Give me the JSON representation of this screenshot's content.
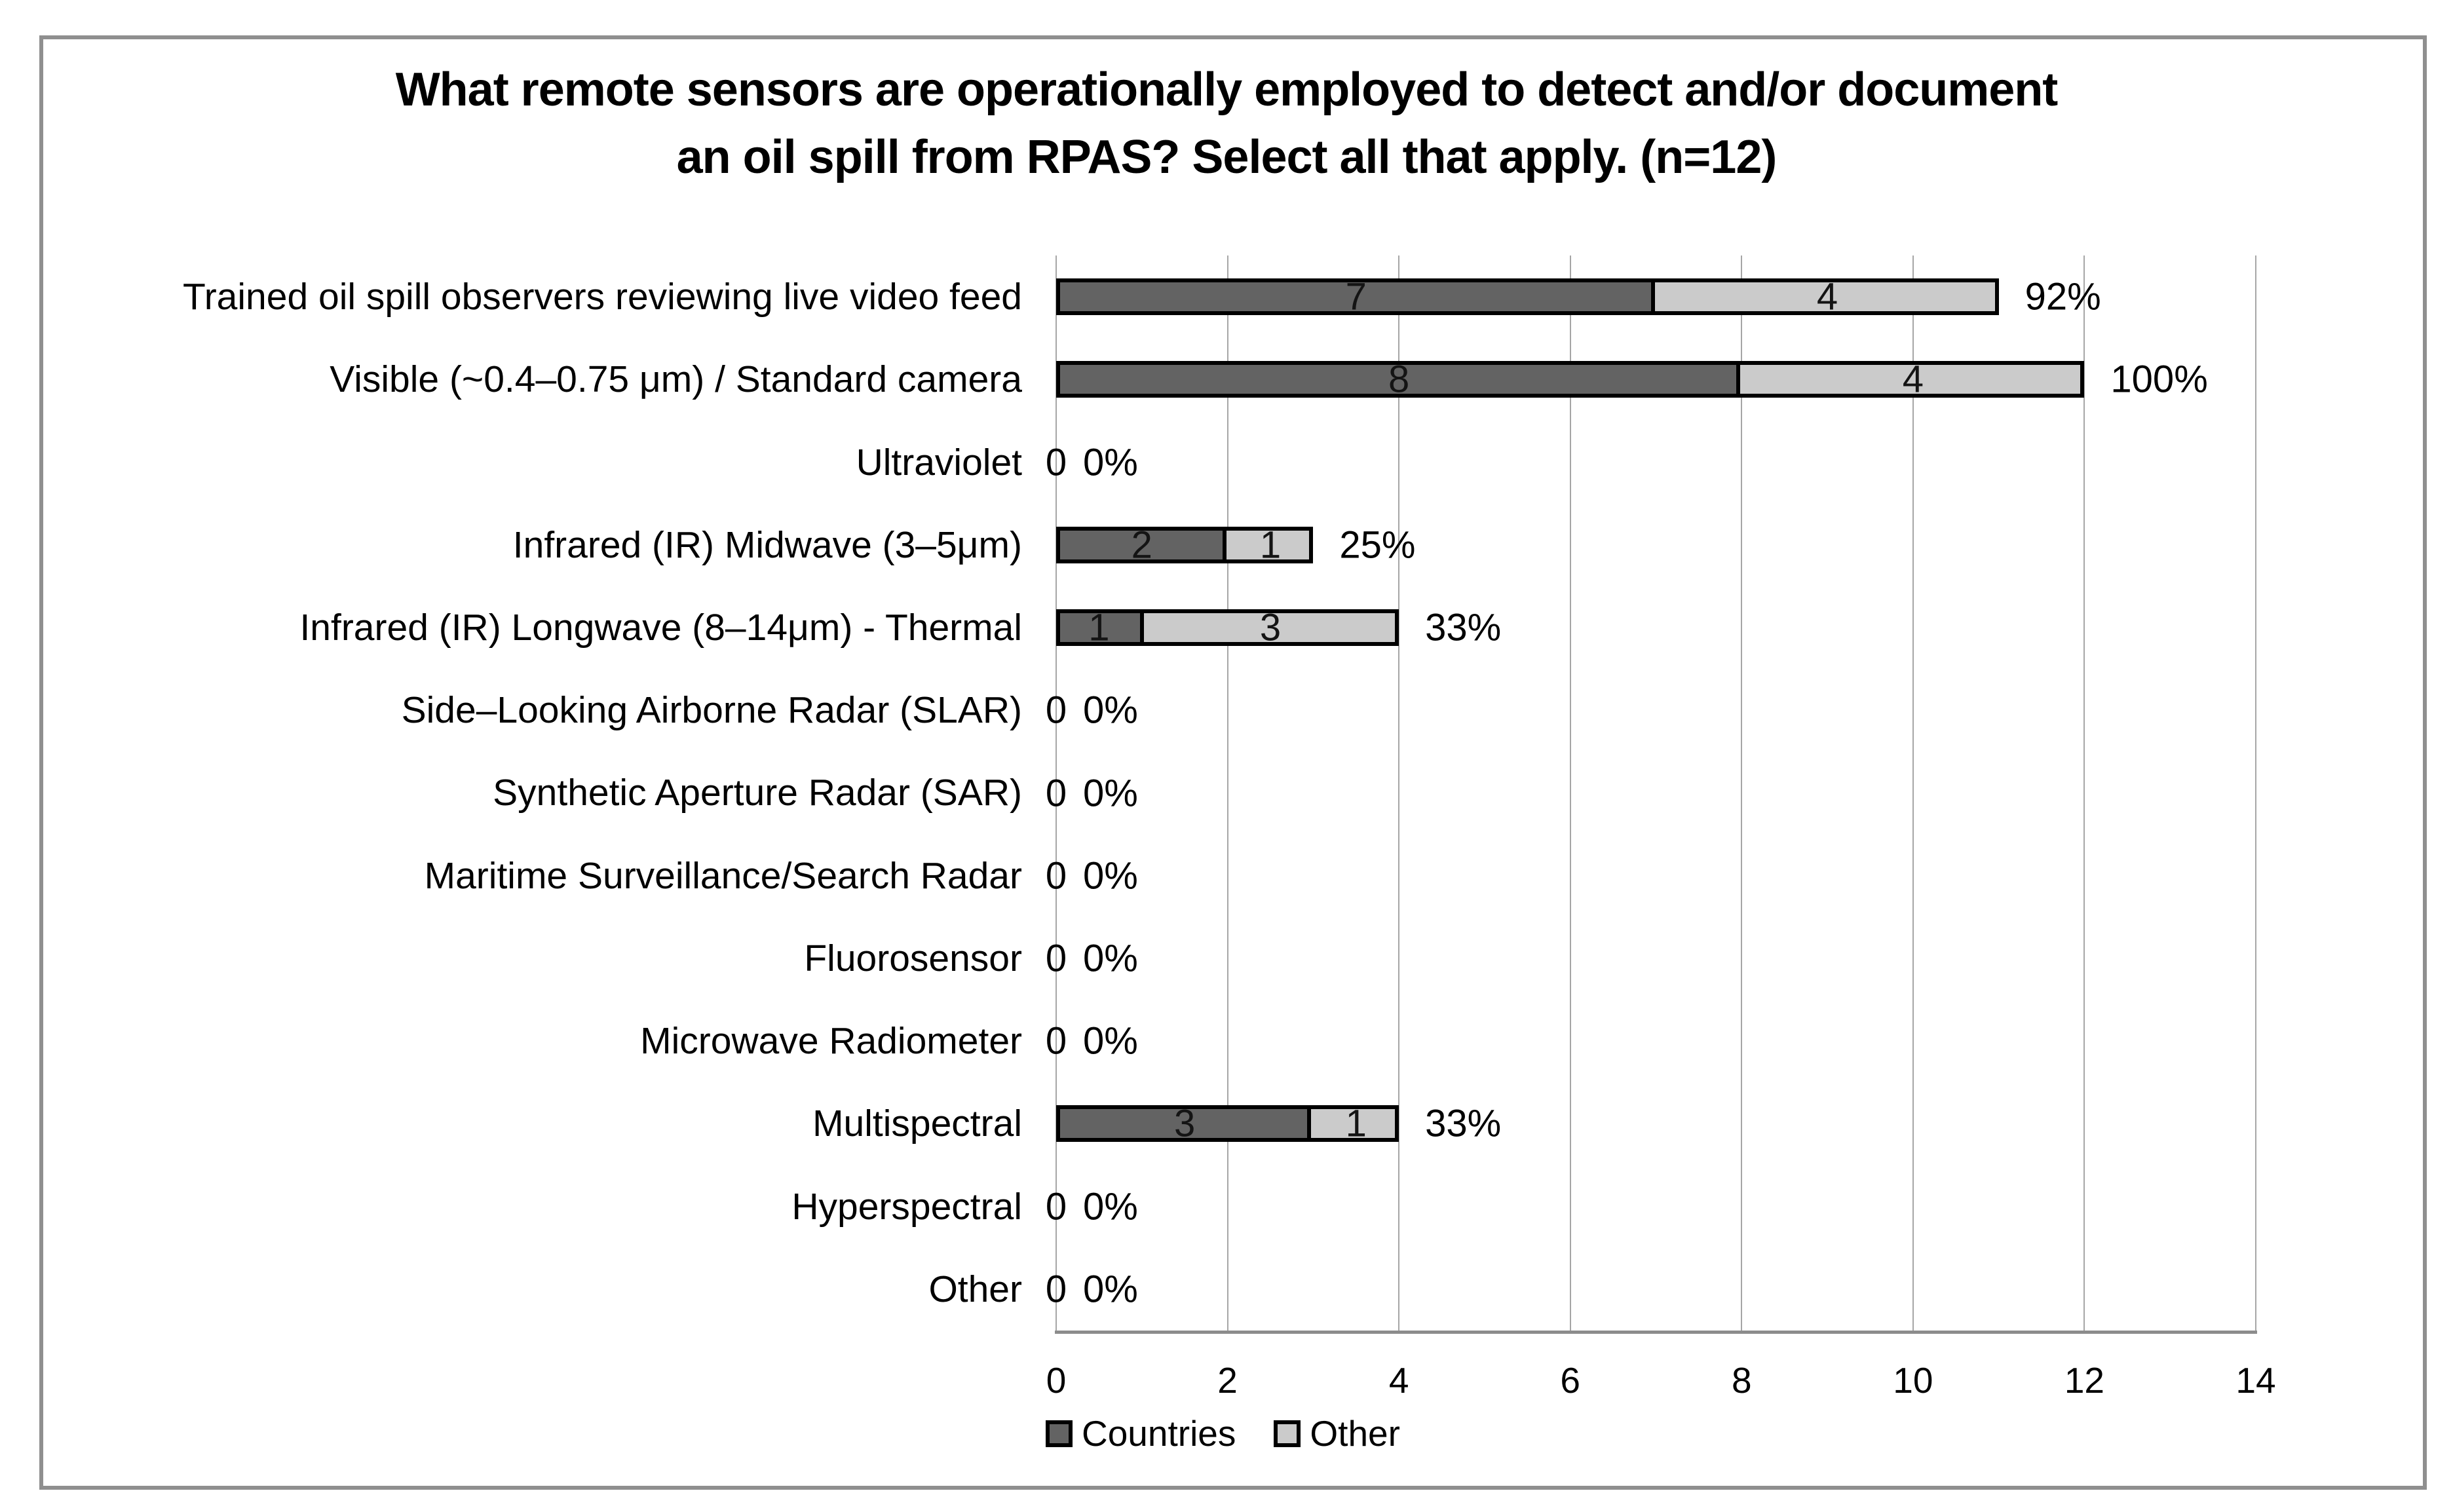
{
  "chart_data": {
    "type": "bar",
    "orientation": "horizontal",
    "stacked": true,
    "title": "What remote sensors are operationally employed to detect and/or document an oil spill from RPAS? Select all that apply. (n=12)",
    "title_display": "What remote sensors are operationally employed to detect and/or document\nan oil spill from RPAS? Select all that apply. (n=12)",
    "categories": [
      "Trained oil spill observers reviewing live video feed",
      "Visible (~0.4–0.75 μm) / Standard camera",
      "Ultraviolet",
      "Infrared (IR) Midwave (3–5μm)",
      "Infrared (IR) Longwave (8–14μm) - Thermal",
      "Side–Looking Airborne Radar (SLAR)",
      "Synthetic Aperture Radar (SAR)",
      "Maritime Surveillance/Search Radar",
      "Fluorosensor",
      "Microwave Radiometer",
      "Multispectral",
      "Hyperspectral",
      "Other"
    ],
    "series": [
      {
        "name": "Countries",
        "color": "#636363",
        "values": [
          7,
          8,
          0,
          2,
          1,
          0,
          0,
          0,
          0,
          0,
          3,
          0,
          0
        ]
      },
      {
        "name": "Other",
        "color": "#cbcbcb",
        "values": [
          4,
          4,
          0,
          1,
          3,
          0,
          0,
          0,
          0,
          0,
          1,
          0,
          0
        ]
      }
    ],
    "percent_labels": [
      "92%",
      "100%",
      "0%",
      "25%",
      "33%",
      "0%",
      "0%",
      "0%",
      "0%",
      "0%",
      "33%",
      "0%",
      "0%"
    ],
    "zero_value_label": "0",
    "xlim": [
      0,
      14
    ],
    "xticks": [
      "0",
      "2",
      "4",
      "6",
      "8",
      "10",
      "12",
      "14"
    ],
    "grid": "vertical",
    "legend_position": "bottom-left",
    "colors": {
      "countries_fill": "#636363",
      "other_fill": "#cbcbcb",
      "bar_border": "#000000",
      "gridline": "#a6a6a6",
      "axis_line": "#8c8c8c",
      "frame_border": "#8f8f8f",
      "text": "#000000",
      "background": "#ffffff"
    }
  }
}
